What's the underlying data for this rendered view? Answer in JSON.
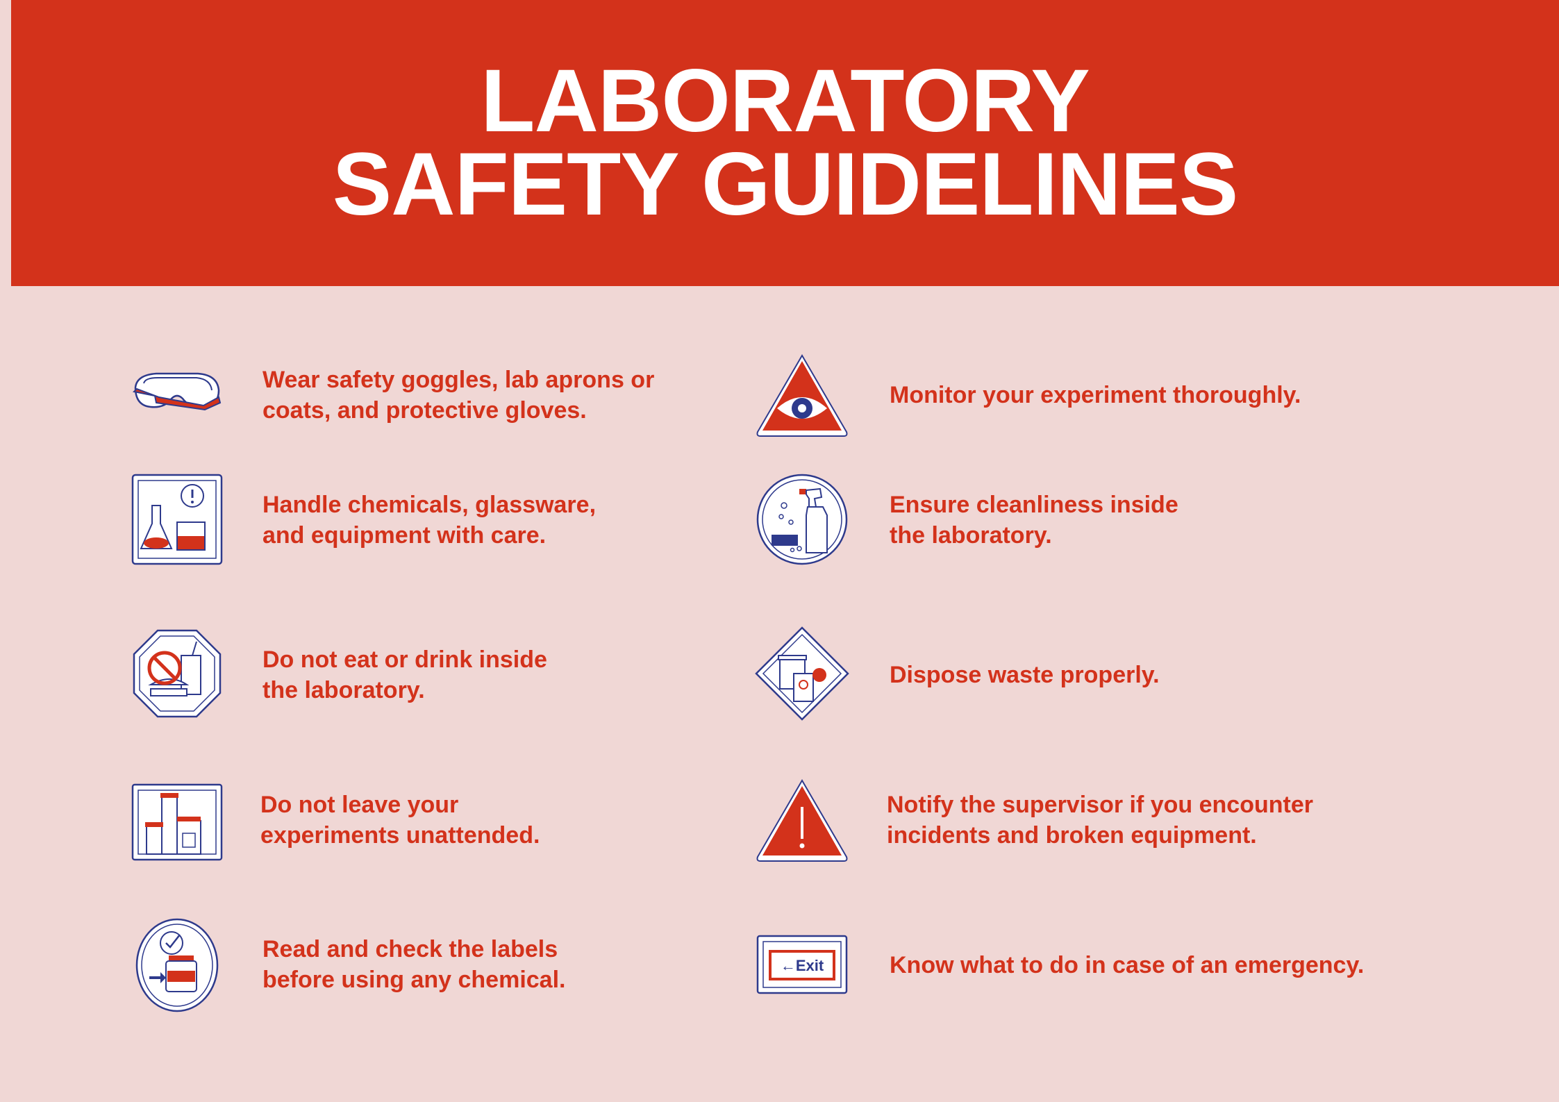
{
  "header": {
    "line1": "LABORATORY",
    "line2": "SAFETY GUIDELINES"
  },
  "colors": {
    "accent": "#d3321b",
    "background": "#f0d7d5",
    "icon_outline": "#2e3a8c"
  },
  "left_items": [
    {
      "icon": "goggles-icon",
      "line1": "Wear safety goggles, lab aprons or",
      "line2": "coats, and protective gloves."
    },
    {
      "icon": "glassware-icon",
      "line1": "Handle chemicals, glassware,",
      "line2": "and equipment with care."
    },
    {
      "icon": "no-food-icon",
      "line1": "Do not eat or drink inside",
      "line2": "the laboratory."
    },
    {
      "icon": "unattended-bottles-icon",
      "line1": "Do not leave your",
      "line2": "experiments unattended."
    },
    {
      "icon": "label-check-icon",
      "line1": "Read and check the labels",
      "line2": "before using any chemical."
    }
  ],
  "right_items": [
    {
      "icon": "eye-warning-icon",
      "line1": "Monitor your experiment thoroughly.",
      "line2": ""
    },
    {
      "icon": "cleaning-spray-icon",
      "line1": "Ensure cleanliness inside",
      "line2": "the laboratory."
    },
    {
      "icon": "waste-disposal-icon",
      "line1": "Dispose waste properly.",
      "line2": ""
    },
    {
      "icon": "exclamation-warning-icon",
      "line1": "Notify the supervisor if you encounter",
      "line2": "incidents and broken equipment."
    },
    {
      "icon": "exit-sign-icon",
      "line1": "Know what to do in case of an emergency.",
      "line2": ""
    }
  ]
}
